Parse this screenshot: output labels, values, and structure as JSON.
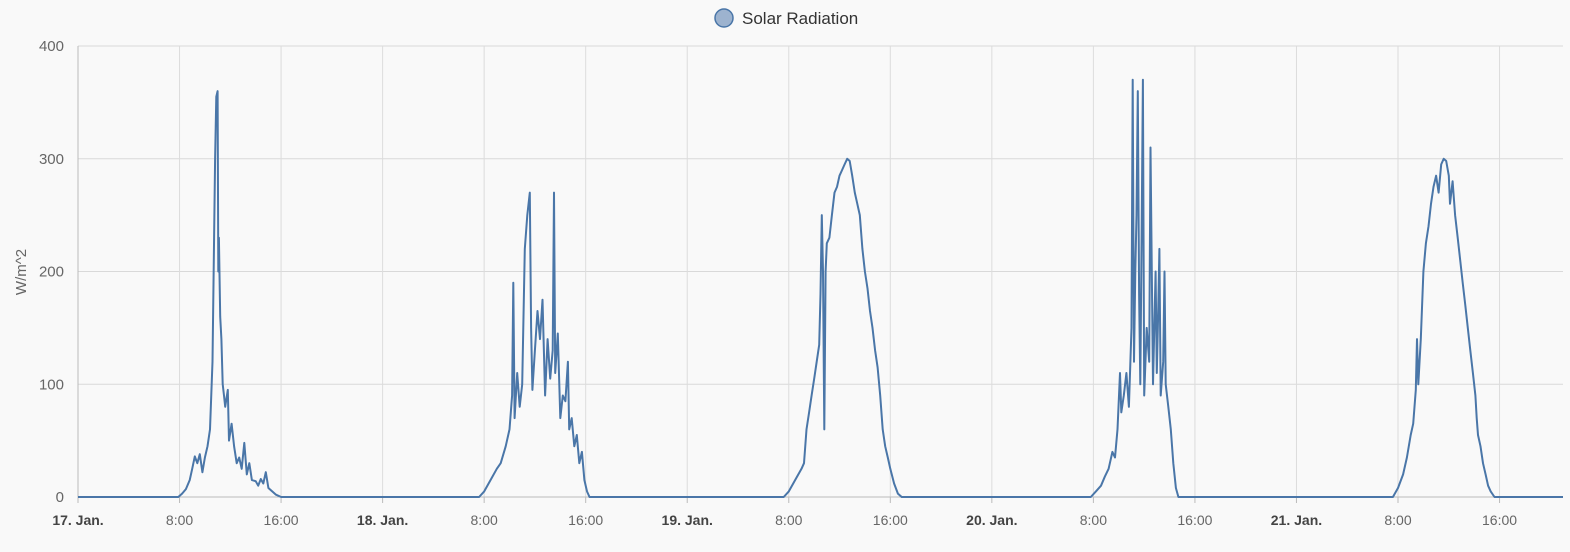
{
  "chart_data": {
    "type": "line",
    "title": "",
    "legend": {
      "items": [
        "Solar Radiation"
      ],
      "position": "top-center"
    },
    "xlabel": "",
    "ylabel": "W/m^2",
    "ylim": [
      0,
      400
    ],
    "yticks": [
      0,
      100,
      200,
      300,
      400
    ],
    "xlim_hours": [
      0,
      117
    ],
    "x_units": "hours since 17. Jan. 00:00",
    "xticks": [
      {
        "hour": 0,
        "label": "17. Jan.",
        "bold": true
      },
      {
        "hour": 8,
        "label": "8:00",
        "bold": false
      },
      {
        "hour": 16,
        "label": "16:00",
        "bold": false
      },
      {
        "hour": 24,
        "label": "18. Jan.",
        "bold": true
      },
      {
        "hour": 32,
        "label": "8:00",
        "bold": false
      },
      {
        "hour": 40,
        "label": "16:00",
        "bold": false
      },
      {
        "hour": 48,
        "label": "19. Jan.",
        "bold": true
      },
      {
        "hour": 56,
        "label": "8:00",
        "bold": false
      },
      {
        "hour": 64,
        "label": "16:00",
        "bold": false
      },
      {
        "hour": 72,
        "label": "20. Jan.",
        "bold": true
      },
      {
        "hour": 80,
        "label": "8:00",
        "bold": false
      },
      {
        "hour": 88,
        "label": "16:00",
        "bold": false
      },
      {
        "hour": 96,
        "label": "21. Jan.",
        "bold": true
      },
      {
        "hour": 104,
        "label": "8:00",
        "bold": false
      },
      {
        "hour": 112,
        "label": "16:00",
        "bold": false
      }
    ],
    "grid": true,
    "series": [
      {
        "name": "Solar Radiation",
        "color": "#4a76a8",
        "points": [
          [
            0,
            0
          ],
          [
            7.9,
            0
          ],
          [
            8.2,
            3
          ],
          [
            8.5,
            7
          ],
          [
            8.8,
            15
          ],
          [
            9.0,
            25
          ],
          [
            9.2,
            36
          ],
          [
            9.4,
            30
          ],
          [
            9.6,
            38
          ],
          [
            9.8,
            22
          ],
          [
            10.0,
            35
          ],
          [
            10.2,
            45
          ],
          [
            10.4,
            60
          ],
          [
            10.6,
            120
          ],
          [
            10.8,
            300
          ],
          [
            10.9,
            355
          ],
          [
            11.0,
            360
          ],
          [
            11.05,
            200
          ],
          [
            11.1,
            230
          ],
          [
            11.2,
            160
          ],
          [
            11.3,
            140
          ],
          [
            11.4,
            100
          ],
          [
            11.5,
            90
          ],
          [
            11.6,
            80
          ],
          [
            11.8,
            95
          ],
          [
            11.9,
            50
          ],
          [
            12.1,
            65
          ],
          [
            12.3,
            45
          ],
          [
            12.5,
            30
          ],
          [
            12.7,
            35
          ],
          [
            12.9,
            25
          ],
          [
            13.1,
            48
          ],
          [
            13.3,
            20
          ],
          [
            13.5,
            30
          ],
          [
            13.7,
            15
          ],
          [
            14.0,
            14
          ],
          [
            14.2,
            10
          ],
          [
            14.4,
            16
          ],
          [
            14.6,
            12
          ],
          [
            14.8,
            22
          ],
          [
            15.0,
            8
          ],
          [
            15.3,
            5
          ],
          [
            15.6,
            2
          ],
          [
            16.0,
            0
          ],
          [
            31.6,
            0
          ],
          [
            32.0,
            5
          ],
          [
            32.5,
            15
          ],
          [
            33.0,
            25
          ],
          [
            33.3,
            30
          ],
          [
            33.7,
            45
          ],
          [
            34.0,
            60
          ],
          [
            34.2,
            90
          ],
          [
            34.3,
            190
          ],
          [
            34.4,
            70
          ],
          [
            34.6,
            110
          ],
          [
            34.8,
            80
          ],
          [
            35.0,
            100
          ],
          [
            35.2,
            220
          ],
          [
            35.4,
            250
          ],
          [
            35.6,
            270
          ],
          [
            35.7,
            150
          ],
          [
            35.8,
            95
          ],
          [
            36.0,
            130
          ],
          [
            36.2,
            165
          ],
          [
            36.4,
            140
          ],
          [
            36.6,
            175
          ],
          [
            36.8,
            90
          ],
          [
            37.0,
            140
          ],
          [
            37.2,
            105
          ],
          [
            37.4,
            130
          ],
          [
            37.5,
            270
          ],
          [
            37.6,
            110
          ],
          [
            37.8,
            145
          ],
          [
            38.0,
            70
          ],
          [
            38.2,
            90
          ],
          [
            38.4,
            85
          ],
          [
            38.6,
            120
          ],
          [
            38.7,
            60
          ],
          [
            38.9,
            70
          ],
          [
            39.1,
            45
          ],
          [
            39.3,
            55
          ],
          [
            39.5,
            30
          ],
          [
            39.7,
            40
          ],
          [
            39.9,
            15
          ],
          [
            40.1,
            5
          ],
          [
            40.3,
            0
          ],
          [
            55.6,
            0
          ],
          [
            56.0,
            5
          ],
          [
            56.5,
            15
          ],
          [
            57.0,
            25
          ],
          [
            57.2,
            30
          ],
          [
            57.4,
            60
          ],
          [
            57.6,
            75
          ],
          [
            57.8,
            90
          ],
          [
            58.0,
            105
          ],
          [
            58.2,
            120
          ],
          [
            58.4,
            135
          ],
          [
            58.5,
            180
          ],
          [
            58.6,
            250
          ],
          [
            58.7,
            200
          ],
          [
            58.8,
            60
          ],
          [
            58.9,
            200
          ],
          [
            59.0,
            225
          ],
          [
            59.2,
            230
          ],
          [
            59.4,
            250
          ],
          [
            59.6,
            270
          ],
          [
            59.8,
            275
          ],
          [
            60.0,
            285
          ],
          [
            60.2,
            290
          ],
          [
            60.4,
            295
          ],
          [
            60.6,
            300
          ],
          [
            60.8,
            298
          ],
          [
            61.0,
            285
          ],
          [
            61.2,
            270
          ],
          [
            61.4,
            260
          ],
          [
            61.6,
            250
          ],
          [
            61.8,
            220
          ],
          [
            62.0,
            200
          ],
          [
            62.2,
            185
          ],
          [
            62.4,
            165
          ],
          [
            62.6,
            150
          ],
          [
            62.8,
            130
          ],
          [
            63.0,
            115
          ],
          [
            63.2,
            90
          ],
          [
            63.4,
            60
          ],
          [
            63.6,
            45
          ],
          [
            63.8,
            35
          ],
          [
            64.0,
            25
          ],
          [
            64.3,
            12
          ],
          [
            64.6,
            3
          ],
          [
            64.9,
            0
          ],
          [
            79.8,
            0
          ],
          [
            80.2,
            5
          ],
          [
            80.6,
            10
          ],
          [
            80.9,
            18
          ],
          [
            81.2,
            25
          ],
          [
            81.5,
            40
          ],
          [
            81.7,
            35
          ],
          [
            81.9,
            60
          ],
          [
            82.1,
            110
          ],
          [
            82.2,
            75
          ],
          [
            82.4,
            90
          ],
          [
            82.6,
            110
          ],
          [
            82.8,
            80
          ],
          [
            83.0,
            150
          ],
          [
            83.1,
            370
          ],
          [
            83.2,
            120
          ],
          [
            83.3,
            200
          ],
          [
            83.4,
            250
          ],
          [
            83.5,
            360
          ],
          [
            83.6,
            180
          ],
          [
            83.7,
            100
          ],
          [
            83.8,
            230
          ],
          [
            83.9,
            370
          ],
          [
            84.0,
            90
          ],
          [
            84.2,
            150
          ],
          [
            84.4,
            120
          ],
          [
            84.5,
            310
          ],
          [
            84.6,
            200
          ],
          [
            84.7,
            100
          ],
          [
            84.8,
            150
          ],
          [
            84.9,
            200
          ],
          [
            85.0,
            110
          ],
          [
            85.1,
            160
          ],
          [
            85.2,
            220
          ],
          [
            85.3,
            90
          ],
          [
            85.5,
            120
          ],
          [
            85.6,
            200
          ],
          [
            85.7,
            100
          ],
          [
            85.9,
            80
          ],
          [
            86.1,
            60
          ],
          [
            86.3,
            30
          ],
          [
            86.5,
            8
          ],
          [
            86.7,
            0
          ],
          [
            103.6,
            0
          ],
          [
            104.0,
            8
          ],
          [
            104.4,
            20
          ],
          [
            104.7,
            35
          ],
          [
            105.0,
            55
          ],
          [
            105.2,
            65
          ],
          [
            105.4,
            95
          ],
          [
            105.5,
            140
          ],
          [
            105.6,
            100
          ],
          [
            105.8,
            140
          ],
          [
            106.0,
            200
          ],
          [
            106.2,
            225
          ],
          [
            106.4,
            240
          ],
          [
            106.6,
            260
          ],
          [
            106.8,
            275
          ],
          [
            107.0,
            285
          ],
          [
            107.2,
            270
          ],
          [
            107.4,
            295
          ],
          [
            107.6,
            300
          ],
          [
            107.8,
            298
          ],
          [
            108.0,
            285
          ],
          [
            108.1,
            260
          ],
          [
            108.3,
            280
          ],
          [
            108.5,
            250
          ],
          [
            108.7,
            230
          ],
          [
            108.9,
            210
          ],
          [
            109.1,
            190
          ],
          [
            109.3,
            170
          ],
          [
            109.5,
            150
          ],
          [
            109.7,
            130
          ],
          [
            109.9,
            110
          ],
          [
            110.1,
            90
          ],
          [
            110.2,
            70
          ],
          [
            110.3,
            55
          ],
          [
            110.5,
            45
          ],
          [
            110.7,
            30
          ],
          [
            110.9,
            20
          ],
          [
            111.1,
            10
          ],
          [
            111.3,
            5
          ],
          [
            111.6,
            0
          ],
          [
            117,
            0
          ]
        ]
      }
    ]
  }
}
